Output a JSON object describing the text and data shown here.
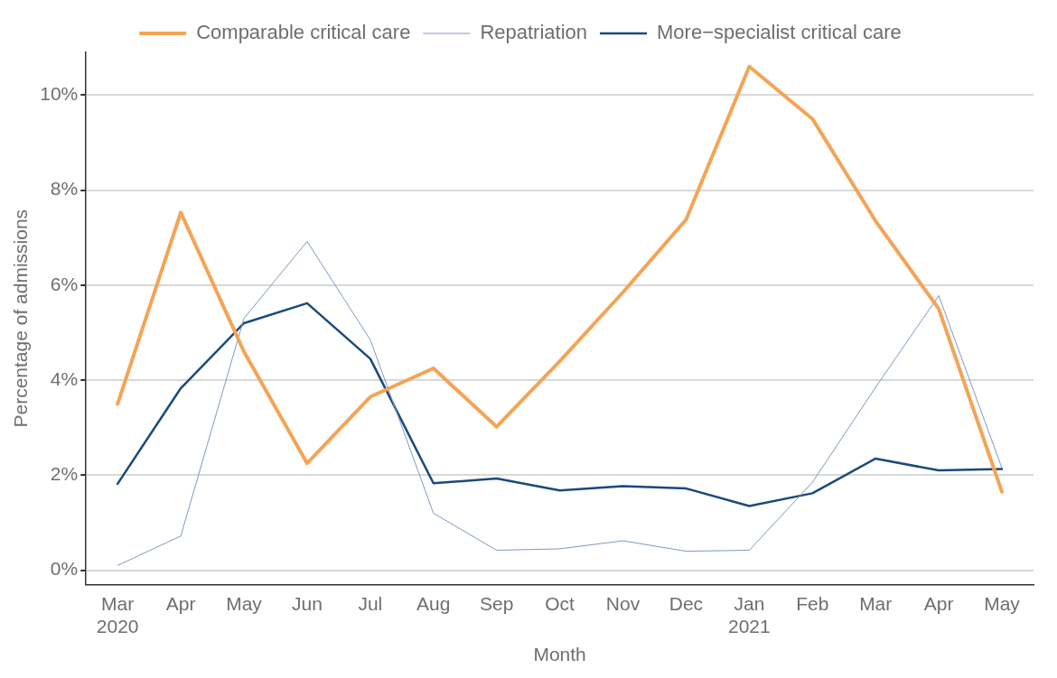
{
  "chart_data": {
    "type": "line",
    "xlabel": "Month",
    "ylabel": "Percentage of admissions",
    "categories": [
      "Mar\n2020",
      "Apr",
      "May",
      "Jun",
      "Jul",
      "Aug",
      "Sep",
      "Oct",
      "Nov",
      "Dec",
      "Jan\n2021",
      "Feb",
      "Mar",
      "Apr",
      "May"
    ],
    "series": [
      {
        "name": "Comparable critical care",
        "color": "#f4a455",
        "values": [
          3.5,
          7.53,
          4.6,
          2.25,
          3.65,
          4.25,
          3.02,
          4.4,
          5.85,
          7.38,
          10.6,
          9.5,
          7.35,
          5.5,
          1.65
        ]
      },
      {
        "name": "Repatriation",
        "color": "#7f98c4",
        "values": [
          0.1,
          0.72,
          5.3,
          6.92,
          4.85,
          1.2,
          0.42,
          0.45,
          0.62,
          0.4,
          0.42,
          1.85,
          3.85,
          5.78,
          2.15
        ]
      },
      {
        "name": "More−specialist critical care",
        "color": "#1a4a7a",
        "values": [
          1.82,
          3.83,
          5.2,
          5.62,
          4.45,
          1.83,
          1.93,
          1.68,
          1.77,
          1.72,
          1.35,
          1.62,
          2.35,
          2.1,
          2.13
        ]
      }
    ],
    "ylim": [
      -0.3,
      10.9
    ],
    "yticks": [
      {
        "value": 0,
        "label": "0%"
      },
      {
        "value": 2,
        "label": "2%"
      },
      {
        "value": 4,
        "label": "4%"
      },
      {
        "value": 6,
        "label": "6%"
      },
      {
        "value": 8,
        "label": "8%"
      },
      {
        "value": 10,
        "label": "10%"
      }
    ],
    "grid": "y",
    "legend": "top",
    "marker": "none",
    "line_style": "solid"
  }
}
